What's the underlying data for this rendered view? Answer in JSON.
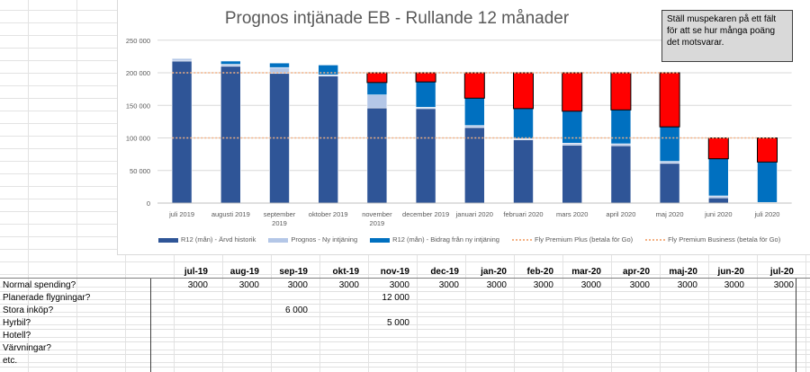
{
  "chart_data": {
    "type": "bar",
    "stacked": true,
    "title": "Prognos intjänade EB - Rullande 12 månader",
    "categories": [
      "juli 2019",
      "augusti 2019",
      "september 2019",
      "oktober 2019",
      "november 2019",
      "december 2019",
      "januari 2020",
      "februari 2020",
      "mars 2020",
      "april 2020",
      "maj 2020",
      "juni 2020",
      "juli 2020"
    ],
    "ylim": [
      0,
      250000
    ],
    "yticks": [
      "0",
      "50 000",
      "100 000",
      "150 000",
      "200 000",
      "250 000"
    ],
    "ytick_values": [
      0,
      50000,
      100000,
      150000,
      200000,
      250000
    ],
    "grid": true,
    "legend_position": "bottom",
    "series": [
      {
        "name": "R12 (mån) - Ärvd historik",
        "color": "#2f5597",
        "values": [
          218000,
          210000,
          199000,
          195000,
          146000,
          145000,
          116000,
          97000,
          89000,
          88000,
          61000,
          8000,
          0
        ]
      },
      {
        "name": "Prognos - Ny intjäning",
        "color": "#b4c7e7",
        "values": [
          4000,
          3000,
          9000,
          2000,
          20000,
          2000,
          3000,
          2000,
          3000,
          3000,
          3000,
          3000,
          1000
        ]
      },
      {
        "name": "R12 (mån) - Bidrag från ny intjäning",
        "color": "#0070c0",
        "values": [
          0,
          5000,
          7000,
          15000,
          19000,
          39000,
          42000,
          46000,
          49000,
          52000,
          53000,
          57000,
          62000
        ]
      },
      {
        "color": "#ff0000",
        "values": [
          0,
          0,
          0,
          0,
          15000,
          14000,
          39000,
          55000,
          59000,
          57000,
          83000,
          32000,
          37000
        ]
      }
    ],
    "lines": [
      {
        "name": "Fly Premium Plus (betala för Go)",
        "color": "#f4b183",
        "values": [
          100000,
          100000,
          100000,
          100000,
          100000,
          100000,
          100000,
          100000,
          100000,
          100000,
          100000,
          100000,
          100000
        ]
      },
      {
        "name": "Fly Premium Business (betala för Go)",
        "color": "#f4b183",
        "values": [
          200000,
          200000,
          200000,
          200000,
          200000,
          200000,
          200000,
          200000,
          200000,
          200000,
          200000,
          null,
          null
        ]
      }
    ]
  },
  "note": "Ställ muspekaren på ett fält för att se hur många poäng det motsvarar.",
  "table": {
    "headers": [
      "jul-19",
      "aug-19",
      "sep-19",
      "okt-19",
      "nov-19",
      "dec-19",
      "jan-20",
      "feb-20",
      "mar-20",
      "apr-20",
      "maj-20",
      "jun-20",
      "jul-20"
    ],
    "rows": [
      {
        "label": "Normal spending?",
        "cells": [
          "3000",
          "3000",
          "3000",
          "3000",
          "3000",
          "3000",
          "3000",
          "3000",
          "3000",
          "3000",
          "3000",
          "3000",
          "3000"
        ]
      },
      {
        "label": "Planerade flygningar?",
        "cells": [
          "",
          "",
          "",
          "",
          "12 000",
          "",
          "",
          "",
          "",
          "",
          "",
          "",
          ""
        ]
      },
      {
        "label": "Stora inköp?",
        "cells": [
          "",
          "",
          "6 000",
          "",
          "",
          "",
          "",
          "",
          "",
          "",
          "",
          "",
          ""
        ]
      },
      {
        "label": "Hyrbil?",
        "cells": [
          "",
          "",
          "",
          "",
          "5 000",
          "",
          "",
          "",
          "",
          "",
          "",
          "",
          ""
        ]
      },
      {
        "label": "Hotell?",
        "cells": [
          "",
          "",
          "",
          "",
          "",
          "",
          "",
          "",
          "",
          "",
          "",
          "",
          ""
        ]
      },
      {
        "label": "Värvningar?",
        "cells": [
          "",
          "",
          "",
          "",
          "",
          "",
          "",
          "",
          "",
          "",
          "",
          "",
          ""
        ]
      },
      {
        "label": "etc.",
        "cells": [
          "",
          "",
          "",
          "",
          "",
          "",
          "",
          "",
          "",
          "",
          "",
          "",
          ""
        ]
      }
    ]
  }
}
